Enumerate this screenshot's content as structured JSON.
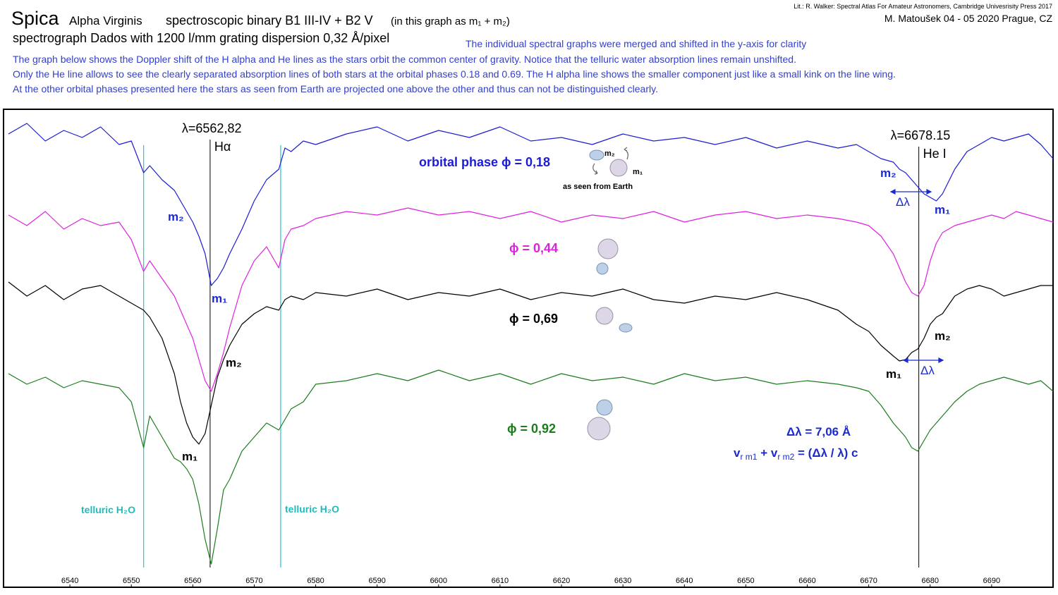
{
  "chart_data": {
    "type": "line",
    "title": "Spica",
    "title_parts": [
      "Alpha Virginis",
      "spectroscopic binary B1 III-IV + B2 V",
      "(in this graph as m₁ + m₂)"
    ],
    "subtitle": "spectrograph Dados with 1200 l/mm grating  dispersion 0,32 Å/pixel",
    "note": "The individual spectral graphs were merged and shifted in the y-axis for clarity",
    "description": [
      "The graph below shows the Doppler shift of the H alpha and He lines as the stars orbit the common center of gravity. Notice that the telluric water absorption lines remain unshifted.",
      "Only the He line allows to see the clearly separated absorption lines of both stars at the orbital phases 0.18 and 0.69. The H alpha line shows the smaller component just like a small kink on the line wing.",
      "At the other orbital phases presented here the stars as seen from Earth are projected one above the other and thus can not be distinguished clearly."
    ],
    "source": "Lit.: R. Walker: Spectral Atlas For Amateur Astronomers, Cambridge Univesrisity Press  2017",
    "author": "M. Matoušek 04 - 05 2020 Prague, CZ",
    "xlim": [
      6529.2,
      6700
    ],
    "ylim": [
      0,
      678
    ],
    "xticks": [
      6540,
      6550,
      6560,
      6570,
      6580,
      6590,
      6600,
      6610,
      6620,
      6630,
      6640,
      6650,
      6660,
      6670,
      6680,
      6690
    ],
    "x": [
      6530,
      6533,
      6536,
      6539,
      6542,
      6545,
      6548,
      6550,
      6552,
      6553,
      6555,
      6557,
      6558,
      6559,
      6560,
      6561,
      6562,
      6563,
      6564,
      6565,
      6566,
      6568,
      6570,
      6572,
      6574,
      6575,
      6576,
      6578,
      6580,
      6585,
      6590,
      6595,
      6600,
      6605,
      6610,
      6615,
      6620,
      6625,
      6630,
      6635,
      6640,
      6645,
      6650,
      6655,
      6660,
      6665,
      6668,
      6670,
      6672,
      6674,
      6675,
      6676,
      6677,
      6678,
      6679,
      6680,
      6681,
      6682,
      6684,
      6686,
      6688,
      6690,
      6692,
      6694,
      6696,
      6698,
      6700
    ],
    "series": [
      {
        "name": "orbital phase ϕ = 0,18",
        "color": "#1c1cd6",
        "values": [
          643,
          658,
          633,
          648,
          638,
          653,
          628,
          633,
          588,
          598,
          578,
          563,
          548,
          533,
          518,
          498,
          473,
          428,
          438,
          453,
          473,
          508,
          548,
          578,
          593,
          623,
          618,
          633,
          628,
          643,
          653,
          633,
          648,
          638,
          653,
          633,
          638,
          628,
          643,
          633,
          638,
          628,
          638,
          623,
          633,
          623,
          628,
          618,
          608,
          603,
          593,
          588,
          578,
          568,
          558,
          553,
          548,
          558,
          593,
          618,
          628,
          638,
          633,
          638,
          643,
          628,
          608
        ]
      },
      {
        "name": "ϕ = 0,44",
        "color": "#e020e0",
        "values": [
          528,
          513,
          533,
          508,
          523,
          513,
          518,
          493,
          448,
          463,
          438,
          413,
          393,
          373,
          353,
          323,
          293,
          278,
          303,
          333,
          368,
          428,
          463,
          483,
          453,
          493,
          508,
          513,
          523,
          533,
          528,
          538,
          528,
          533,
          523,
          533,
          518,
          528,
          523,
          533,
          518,
          528,
          533,
          523,
          528,
          523,
          518,
          513,
          498,
          473,
          453,
          433,
          418,
          413,
          428,
          463,
          488,
          503,
          513,
          518,
          523,
          528,
          523,
          533,
          528,
          523,
          518
        ]
      },
      {
        "name": "ϕ = 0,69",
        "color": "#000000",
        "values": [
          433,
          413,
          428,
          408,
          423,
          428,
          413,
          403,
          393,
          383,
          353,
          303,
          263,
          233,
          213,
          203,
          218,
          258,
          298,
          323,
          343,
          373,
          388,
          398,
          393,
          408,
          413,
          408,
          418,
          413,
          423,
          408,
          418,
          413,
          423,
          408,
          418,
          413,
          423,
          408,
          403,
          413,
          408,
          418,
          408,
          393,
          373,
          363,
          343,
          328,
          321,
          323,
          333,
          338,
          353,
          373,
          383,
          388,
          413,
          423,
          428,
          423,
          413,
          418,
          423,
          428,
          428
        ]
      },
      {
        "name": "ϕ = 0,92",
        "color": "#1c7c1c",
        "values": [
          303,
          288,
          298,
          283,
          293,
          288,
          283,
          263,
          198,
          243,
          213,
          183,
          178,
          168,
          153,
          118,
          68,
          33,
          83,
          138,
          153,
          193,
          213,
          233,
          223,
          238,
          253,
          263,
          288,
          293,
          303,
          293,
          308,
          293,
          303,
          288,
          303,
          293,
          298,
          288,
          303,
          293,
          298,
          288,
          293,
          288,
          283,
          278,
          258,
          233,
          223,
          213,
          198,
          193,
          208,
          223,
          233,
          243,
          263,
          278,
          288,
          293,
          298,
          293,
          288,
          293,
          278
        ]
      }
    ],
    "reference_lines": [
      {
        "value": 6562.82,
        "label": "λ=6562,82",
        "name": "Hα"
      },
      {
        "value": 6678.15,
        "label": "λ=6678.15",
        "name": "He I"
      }
    ],
    "telluric_lines": [
      6552,
      6574.3
    ],
    "telluric_color": "#33cccc",
    "annotations": [
      "m₂",
      "m₁",
      "m₂",
      "m₁",
      "m₂",
      "m₁",
      "Δλ",
      "m₂",
      "m₁",
      "Δλ",
      "telluric  H₂O",
      "telluric  H₂O",
      "Δλ = 7,06 Å",
      "m₂",
      "m₁",
      "as seen from Earth"
    ],
    "formula": [
      "v",
      "r m1",
      " + v",
      "r m2",
      " =  (Δλ / λ) c"
    ]
  }
}
